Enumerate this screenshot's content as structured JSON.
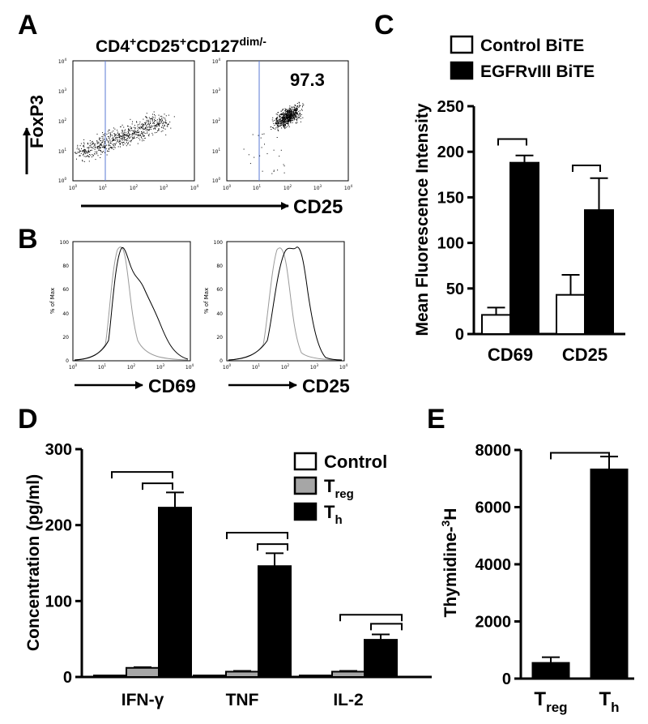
{
  "panels": {
    "A": {
      "letter": "A",
      "title_main": "CD4",
      "title_sup1": "+",
      "title_mid": "CD25",
      "title_sup2": "+",
      "title_end": "CD127",
      "title_sup3": "dim/-",
      "ylabel": "FoxP3",
      "xlabel": "CD25",
      "gate_value": "97.3"
    },
    "B": {
      "letter": "B",
      "ylabel": "% of Max",
      "yticks": [
        "0",
        "20",
        "40",
        "60",
        "80",
        "100"
      ],
      "xlabel_left": "CD69",
      "xlabel_right": "CD25"
    },
    "C": {
      "letter": "C"
    },
    "D": {
      "letter": "D"
    },
    "E": {
      "letter": "E"
    }
  },
  "chart_data": [
    {
      "panel": "C",
      "type": "bar",
      "categories": [
        "CD69",
        "CD25"
      ],
      "series": [
        {
          "name": "Control BiTE",
          "color": "#ffffff",
          "values": [
            21,
            43
          ],
          "errors": [
            8,
            22
          ]
        },
        {
          "name": "EGFRvIII BiTE",
          "color": "#000000",
          "values": [
            188,
            136
          ],
          "errors": [
            8,
            35
          ]
        }
      ],
      "ylabel": "Mean Fluorescence Intensity",
      "ylim": [
        0,
        250
      ],
      "yticks": [
        "0",
        "50",
        "100",
        "150",
        "200",
        "250"
      ],
      "legend_position": "top"
    },
    {
      "panel": "D",
      "type": "bar",
      "categories": [
        "IFN-γ",
        "TNF",
        "IL-2"
      ],
      "series": [
        {
          "name": "Control",
          "color": "#ffffff",
          "values": [
            2,
            2,
            2
          ],
          "errors": [
            0,
            0,
            0
          ]
        },
        {
          "name": "T",
          "sub": "reg",
          "color": "#a6a6a6",
          "values": [
            12,
            7,
            7
          ],
          "errors": [
            1,
            1,
            1
          ]
        },
        {
          "name": "T",
          "sub": "h",
          "color": "#000000",
          "values": [
            223,
            146,
            49
          ],
          "errors": [
            20,
            17,
            7
          ]
        }
      ],
      "ylabel": "Concentration (pg/ml)",
      "ylim": [
        0,
        300
      ],
      "yticks": [
        "0",
        "100",
        "200",
        "300"
      ],
      "legend_position": "top-right"
    },
    {
      "panel": "E",
      "type": "bar",
      "categories": [
        {
          "main": "T",
          "sub": "reg"
        },
        {
          "main": "T",
          "sub": "h"
        }
      ],
      "values": [
        550,
        7320
      ],
      "errors": [
        200,
        450
      ],
      "color": "#000000",
      "ylabel_main": "Thymidine-",
      "ylabel_sup": "3",
      "ylabel_end": "H",
      "ylim": [
        0,
        8000
      ],
      "yticks": [
        "0",
        "2000",
        "4000",
        "6000",
        "8000"
      ]
    }
  ]
}
